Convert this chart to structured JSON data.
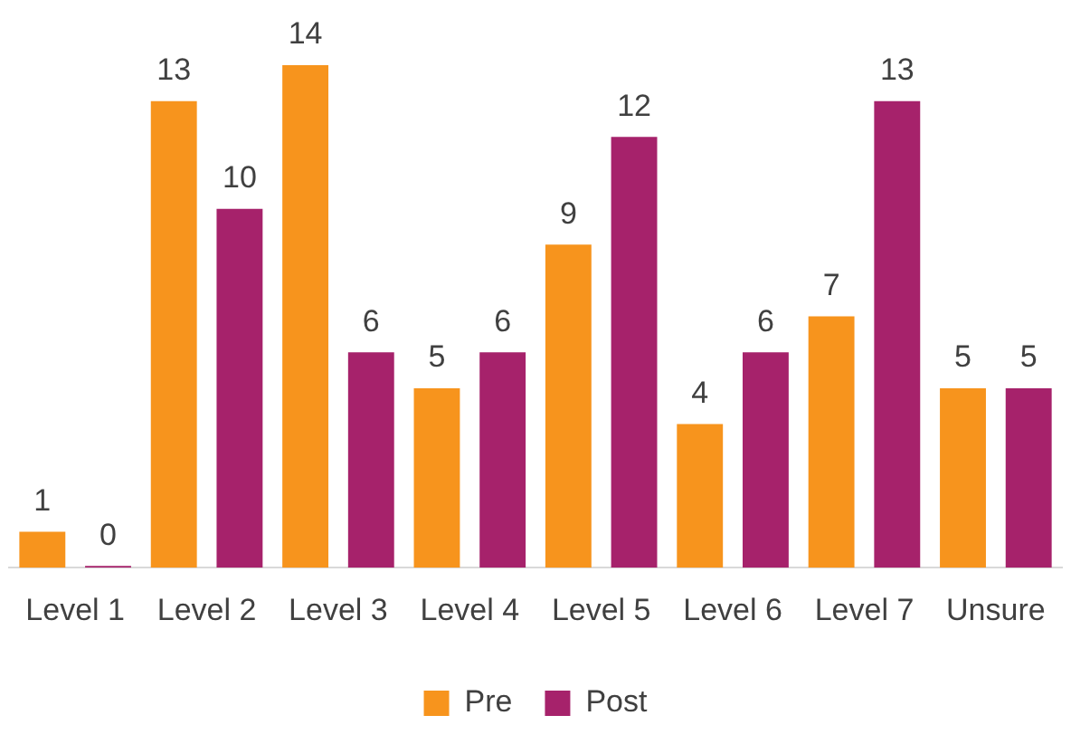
{
  "chart_data": {
    "type": "bar",
    "categories": [
      "Level 1",
      "Level 2",
      "Level 3",
      "Level 4",
      "Level 5",
      "Level 6",
      "Level 7",
      "Unsure"
    ],
    "series": [
      {
        "name": "Pre",
        "color": "#f7941d",
        "values": [
          1,
          13,
          14,
          5,
          9,
          4,
          7,
          5
        ]
      },
      {
        "name": "Post",
        "color": "#a6226b",
        "values": [
          0,
          10,
          6,
          6,
          12,
          6,
          13,
          5
        ]
      }
    ],
    "data_labels": true,
    "legend": "bottom",
    "grid": false
  }
}
